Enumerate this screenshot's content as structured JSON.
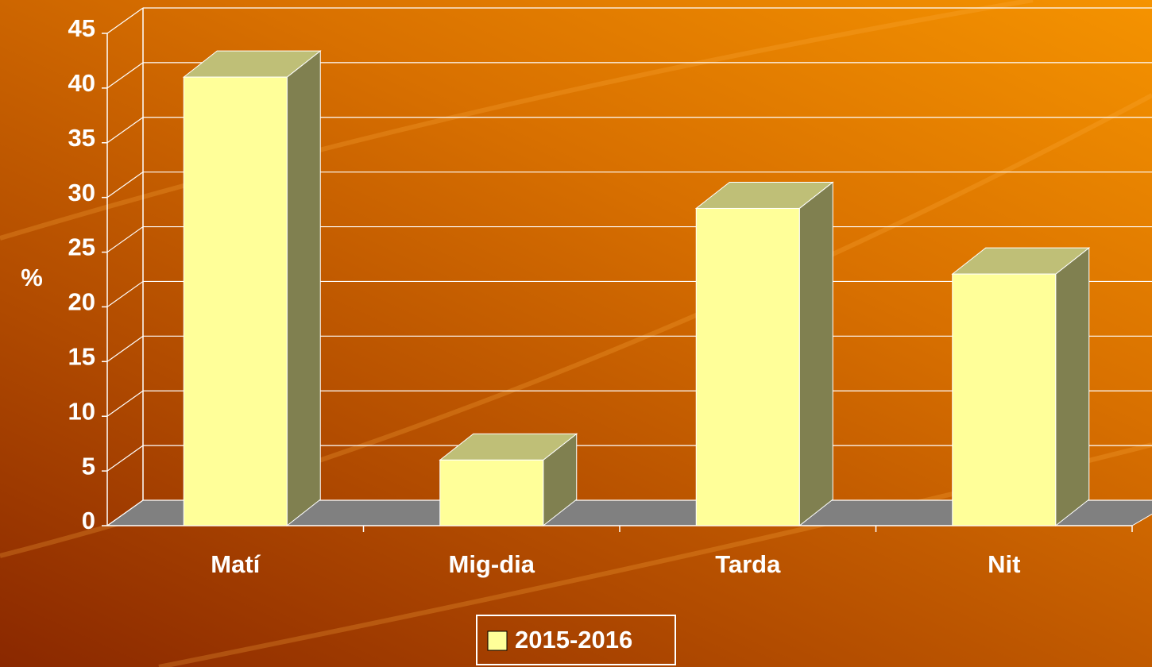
{
  "chart_data": {
    "type": "bar3d",
    "y_label": "%",
    "categories": [
      "Matí",
      "Mig-dia",
      "Tarda",
      "Nit"
    ],
    "series": [
      {
        "name": "2015-2016",
        "color": "#ffff99",
        "values": [
          41,
          6,
          29,
          23
        ]
      }
    ],
    "ylim": [
      0,
      45
    ],
    "yticks": [
      0,
      5,
      10,
      15,
      20,
      25,
      30,
      35,
      40,
      45
    ],
    "grid": true
  }
}
